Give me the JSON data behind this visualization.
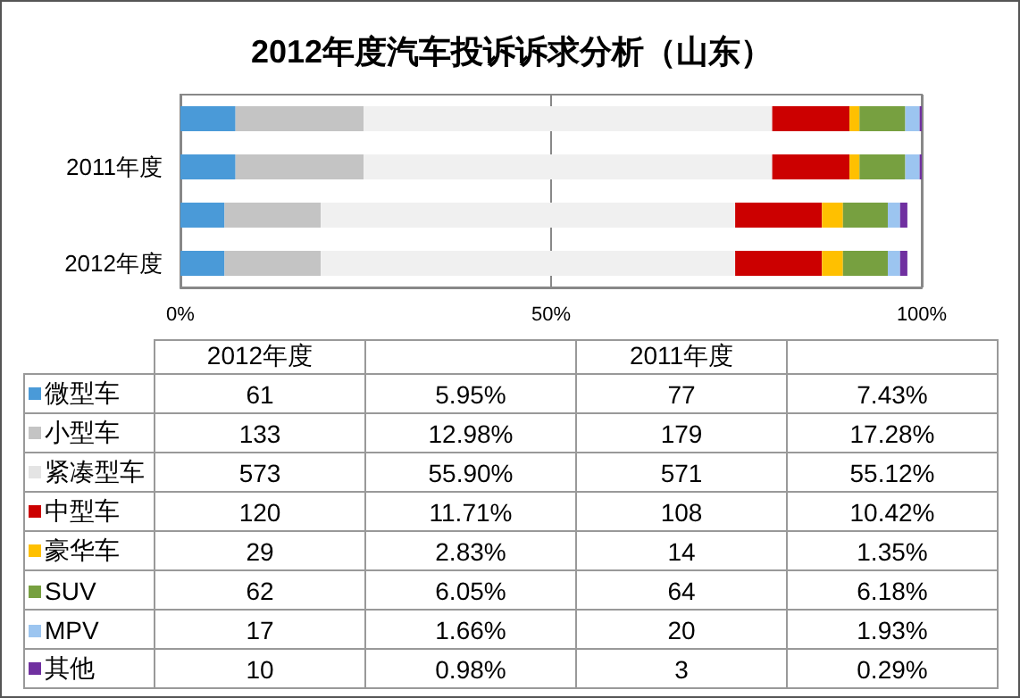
{
  "chart_data": [
    {
      "type": "bar",
      "orientation": "horizontal",
      "stacked": true,
      "title": "2012年度汽车投诉诉求分析（山东）",
      "categories": [
        null,
        "2011年度",
        null,
        "2012年度"
      ],
      "series": [
        {
          "color": "#4a9ad8",
          "values": [
            7.43,
            7.43,
            5.95,
            5.95
          ]
        },
        {
          "color": "#c4c4c4",
          "values": [
            17.28,
            17.28,
            12.98,
            12.98
          ]
        },
        {
          "color": "#f0f0f0",
          "values": [
            55.12,
            55.12,
            55.9,
            55.9
          ]
        },
        {
          "color": "#cc0000",
          "values": [
            10.42,
            10.42,
            11.71,
            11.71
          ]
        },
        {
          "color": "#ffc000",
          "values": [
            1.35,
            1.35,
            2.83,
            2.83
          ]
        },
        {
          "color": "#77a040",
          "values": [
            6.18,
            6.18,
            6.05,
            6.05
          ]
        },
        {
          "color": "#9cc5f0",
          "values": [
            1.93,
            1.93,
            1.66,
            1.66
          ]
        },
        {
          "color": "#7030a0",
          "values": [
            0.29,
            0.29,
            0.98,
            0.98
          ]
        }
      ],
      "xlim": [
        0,
        100
      ],
      "xticks": [
        {
          "value": 0,
          "label": "0%"
        },
        {
          "value": 50,
          "label": "50%"
        },
        {
          "value": 100,
          "label": "100%"
        }
      ],
      "grid": "x"
    },
    {
      "type": "other",
      "data_labels": true,
      "categories": [
        "微型车",
        "小型车",
        "紧凑型车",
        "中型车",
        "豪华车",
        "SUV",
        "MPV",
        "其他"
      ],
      "colors": [
        "#4a9ad8",
        "#c4c4c4",
        "#e4e4e4",
        "#cc0000",
        "#ffc000",
        "#77a040",
        "#9cc5f0",
        "#7030a0"
      ],
      "series": [
        {
          "name": "2012年度",
          "values": [
            61,
            133,
            573,
            120,
            29,
            62,
            17,
            10
          ]
        },
        {
          "values": [
            5.95,
            12.98,
            55.9,
            11.71,
            2.83,
            6.05,
            1.66,
            0.98
          ],
          "value_labels": [
            "5.95%",
            "12.98%",
            "55.90%",
            "11.71%",
            "2.83%",
            "6.05%",
            "1.66%",
            "0.98%"
          ]
        },
        {
          "name": "2011年度",
          "values": [
            77,
            179,
            571,
            108,
            14,
            64,
            20,
            3
          ]
        },
        {
          "values": [
            7.43,
            17.28,
            55.12,
            10.42,
            1.35,
            6.18,
            1.93,
            0.29
          ],
          "value_labels": [
            "7.43%",
            "17.28%",
            "55.12%",
            "10.42%",
            "1.35%",
            "6.18%",
            "1.93%",
            "0.29%"
          ]
        }
      ]
    }
  ]
}
